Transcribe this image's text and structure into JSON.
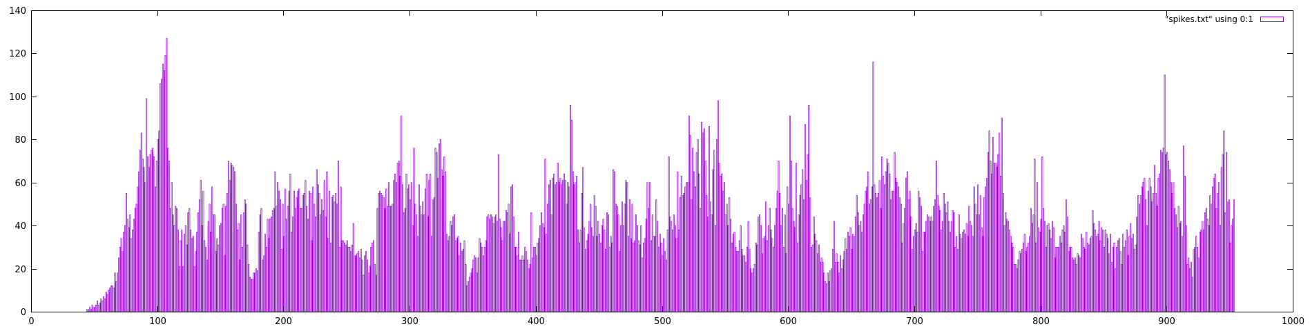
{
  "chart_data": {
    "type": "bar",
    "legend": {
      "label": "\"spikes.txt\" using 0:1",
      "position": "top-right"
    },
    "color": "#9400d3",
    "xlim": [
      0,
      1000
    ],
    "ylim": [
      0,
      140
    ],
    "x_ticks": [
      0,
      100,
      200,
      300,
      400,
      500,
      600,
      700,
      800,
      900,
      1000
    ],
    "y_ticks": [
      0,
      20,
      40,
      60,
      80,
      100,
      120,
      140
    ],
    "grid": false,
    "title": "",
    "xlabel": "",
    "ylabel": "",
    "values": [
      0,
      0,
      0,
      0,
      0,
      0,
      0,
      0,
      0,
      0,
      0,
      0,
      0,
      0,
      0,
      0,
      0,
      0,
      0,
      0,
      0,
      0,
      0,
      0,
      0,
      0,
      0,
      0,
      0,
      0,
      0,
      0,
      0,
      0,
      0,
      0,
      0,
      0,
      0,
      0,
      0,
      0,
      0,
      0,
      1,
      1,
      2,
      1,
      3,
      2,
      2,
      3,
      5,
      3,
      4,
      6,
      5,
      7,
      6,
      9,
      8,
      10,
      11,
      12,
      12,
      11,
      18,
      14,
      18,
      25,
      30,
      34,
      28,
      37,
      40,
      55,
      43,
      39,
      45,
      34,
      38,
      43,
      48,
      50,
      58,
      65,
      75,
      83,
      71,
      67,
      60,
      99,
      72,
      67,
      73,
      75,
      76,
      72,
      58,
      70,
      80,
      84,
      106,
      108,
      115,
      112,
      119,
      127,
      76,
      70,
      48,
      60,
      45,
      40,
      49,
      48,
      38,
      21,
      33,
      38,
      21,
      36,
      40,
      31,
      46,
      48,
      38,
      34,
      35,
      21,
      28,
      37,
      46,
      52,
      61,
      40,
      56,
      33,
      30,
      24,
      42,
      50,
      37,
      58,
      45,
      45,
      28,
      34,
      31,
      40,
      41,
      48,
      50,
      26,
      49,
      55,
      70,
      61,
      69,
      68,
      67,
      65,
      50,
      38,
      41,
      24,
      45,
      30,
      46,
      52,
      50,
      31,
      22,
      16,
      15,
      15,
      18,
      18,
      20,
      19,
      37,
      45,
      48,
      24,
      26,
      36,
      30,
      43,
      34,
      43,
      44,
      47,
      48,
      65,
      49,
      60,
      56,
      52,
      29,
      50,
      35,
      57,
      43,
      49,
      56,
      64,
      37,
      44,
      56,
      48,
      53,
      56,
      57,
      48,
      48,
      54,
      55,
      61,
      49,
      43,
      56,
      55,
      33,
      58,
      50,
      44,
      66,
      59,
      55,
      45,
      52,
      47,
      61,
      44,
      65,
      34,
      56,
      32,
      53,
      54,
      51,
      55,
      50,
      70,
      30,
      58,
      33,
      33,
      32,
      31,
      33,
      30,
      30,
      28,
      31,
      41,
      26,
      26,
      27,
      28,
      25,
      29,
      24,
      17,
      26,
      28,
      24,
      18,
      21,
      30,
      32,
      33,
      22,
      17,
      48,
      55,
      56,
      55,
      54,
      53,
      48,
      57,
      49,
      60,
      49,
      49,
      50,
      61,
      64,
      60,
      69,
      70,
      63,
      91,
      59,
      46,
      48,
      64,
      57,
      59,
      52,
      60,
      40,
      76,
      50,
      45,
      35,
      59,
      49,
      45,
      51,
      45,
      57,
      64,
      44,
      61,
      64,
      35,
      52,
      53,
      76,
      74,
      62,
      78,
      80,
      66,
      63,
      72,
      65,
      36,
      33,
      35,
      42,
      40,
      44,
      45,
      33,
      34,
      35,
      26,
      32,
      28,
      29,
      33,
      22,
      12,
      14,
      16,
      18,
      20,
      24,
      26,
      25,
      18,
      25,
      34,
      32,
      30,
      26,
      30,
      33,
      44,
      45,
      43,
      45,
      44,
      41,
      44,
      45,
      42,
      73,
      43,
      39,
      33,
      42,
      42,
      47,
      46,
      50,
      36,
      58,
      59,
      44,
      30,
      30,
      26,
      37,
      24,
      24,
      26,
      24,
      30,
      28,
      24,
      20,
      22,
      46,
      25,
      30,
      30,
      26,
      32,
      34,
      40,
      46,
      41,
      39,
      71,
      36,
      50,
      59,
      61,
      45,
      62,
      64,
      59,
      60,
      69,
      60,
      62,
      59,
      61,
      64,
      61,
      50,
      60,
      58,
      96,
      89,
      65,
      59,
      60,
      63,
      38,
      32,
      38,
      55,
      67,
      39,
      29,
      33,
      36,
      42,
      50,
      39,
      35,
      54,
      49,
      35,
      42,
      36,
      32,
      40,
      43,
      38,
      29,
      46,
      45,
      30,
      35,
      32,
      66,
      65,
      50,
      49,
      45,
      28,
      40,
      51,
      40,
      50,
      61,
      60,
      35,
      52,
      34,
      50,
      32,
      33,
      45,
      40,
      33,
      31,
      40,
      25,
      32,
      34,
      43,
      60,
      48,
      60,
      33,
      45,
      35,
      35,
      52,
      42,
      30,
      36,
      32,
      26,
      34,
      28,
      24,
      38,
      72,
      44,
      42,
      38,
      45,
      40,
      34,
      65,
      38,
      53,
      63,
      54,
      55,
      58,
      60,
      60,
      91,
      82,
      52,
      76,
      65,
      58,
      74,
      80,
      64,
      48,
      88,
      83,
      85,
      70,
      54,
      44,
      86,
      51,
      45,
      66,
      75,
      40,
      80,
      98,
      69,
      63,
      64,
      56,
      60,
      45,
      50,
      40,
      53,
      43,
      32,
      36,
      37,
      30,
      28,
      28,
      33,
      40,
      29,
      26,
      26,
      23,
      30,
      42,
      29,
      20,
      18,
      20,
      22,
      32,
      31,
      44,
      45,
      40,
      27,
      34,
      35,
      51,
      33,
      40,
      48,
      38,
      34,
      30,
      40,
      48,
      56,
      70,
      55,
      40,
      48,
      30,
      45,
      27,
      58,
      50,
      91,
      70,
      48,
      42,
      39,
      69,
      32,
      45,
      54,
      59,
      66,
      52,
      87,
      61,
      73,
      96,
      53,
      30,
      31,
      44,
      36,
      33,
      27,
      31,
      23,
      25,
      23,
      18,
      14,
      13,
      18,
      14,
      19,
      20,
      29,
      42,
      23,
      27,
      23,
      18,
      26,
      20,
      24,
      28,
      34,
      29,
      37,
      35,
      39,
      29,
      36,
      35,
      44,
      54,
      46,
      40,
      42,
      37,
      45,
      50,
      56,
      58,
      65,
      50,
      52,
      58,
      116,
      59,
      55,
      53,
      55,
      61,
      48,
      72,
      63,
      59,
      65,
      71,
      69,
      64,
      52,
      56,
      56,
      74,
      62,
      60,
      58,
      53,
      50,
      32,
      41,
      48,
      62,
      65,
      52,
      56,
      44,
      29,
      35,
      38,
      41,
      37,
      56,
      53,
      49,
      28,
      37,
      37,
      42,
      45,
      44,
      42,
      44,
      42,
      49,
      52,
      70,
      54,
      49,
      47,
      38,
      42,
      55,
      50,
      46,
      51,
      42,
      37,
      42,
      47,
      46,
      30,
      35,
      29,
      45,
      36,
      34,
      37,
      38,
      36,
      41,
      35,
      49,
      42,
      40,
      35,
      58,
      50,
      45,
      59,
      45,
      54,
      39,
      35,
      53,
      58,
      62,
      74,
      84,
      70,
      64,
      81,
      69,
      69,
      67,
      73,
      83,
      63,
      90,
      55,
      40,
      46,
      43,
      42,
      38,
      35,
      32,
      30,
      22,
      22,
      20,
      24,
      28,
      27,
      29,
      32,
      36,
      28,
      30,
      32,
      35,
      48,
      41,
      45,
      71,
      32,
      60,
      39,
      37,
      43,
      72,
      48,
      42,
      30,
      40,
      41,
      38,
      34,
      42,
      39,
      25,
      30,
      30,
      30,
      35,
      32,
      38,
      40,
      37,
      52,
      44,
      28,
      30,
      30,
      25,
      24,
      25,
      22,
      27,
      26,
      25,
      36,
      34,
      30,
      29,
      37,
      32,
      31,
      34,
      35,
      47,
      41,
      38,
      35,
      36,
      42,
      33,
      39,
      38,
      30,
      38,
      36,
      34,
      27,
      36,
      23,
      30,
      32,
      20,
      30,
      33,
      34,
      28,
      22,
      36,
      30,
      33,
      38,
      26,
      35,
      41,
      34,
      36,
      29,
      31,
      44,
      54,
      50,
      54,
      58,
      60,
      62,
      52,
      40,
      56,
      62,
      58,
      51,
      55,
      68,
      55,
      49,
      62,
      64,
      75,
      74,
      76,
      110,
      73,
      74,
      70,
      66,
      60,
      55,
      60,
      48,
      45,
      39,
      49,
      41,
      42,
      35,
      77,
      63,
      40,
      22,
      25,
      20,
      23,
      16,
      29,
      30,
      35,
      30,
      25,
      37,
      38,
      42,
      38,
      46,
      48,
      43,
      40,
      54,
      50,
      58,
      62,
      64,
      48,
      55,
      60,
      40,
      67,
      73,
      84,
      46,
      74,
      51,
      52,
      32,
      40,
      43,
      52
    ]
  }
}
